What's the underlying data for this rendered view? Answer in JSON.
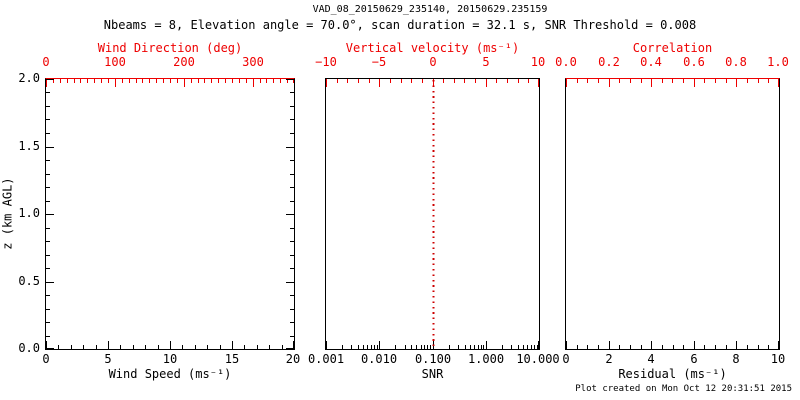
{
  "title": "VAD_08_20150629_235140, 20150629.235159",
  "subtitle": "Nbeams = 8, Elevation angle = 70.0°, scan duration = 32.1 s, SNR Threshold = 0.008",
  "footer": "Plot created on Mon Oct 12 20:31:51 2015",
  "colors": {
    "primary_axis": "#000000",
    "secondary_axis": "#ee0000",
    "reference_line": "#cc0000",
    "background": "#ffffff"
  },
  "y_axis": {
    "label": "z (km AGL)",
    "lim": [
      0.0,
      2.0
    ],
    "major_ticks": [
      0.0,
      0.5,
      1.0,
      1.5,
      2.0
    ],
    "tick_labels": [
      "0.0",
      "0.5",
      "1.0",
      "1.5",
      "2.0"
    ],
    "minor_step": 0.1
  },
  "chart_data": [
    {
      "type": "line",
      "panel": "wind-speed",
      "series": [],
      "note": "panel is empty - no profile data plotted",
      "xlabel": "Wind Speed (ms⁻¹)",
      "xscale": "linear",
      "xlim": [
        0,
        20
      ],
      "x_major_ticks": [
        0,
        5,
        10,
        15,
        20
      ],
      "x_tick_labels": [
        "0",
        "5",
        "10",
        "15",
        "20"
      ],
      "x_minor_step": 1,
      "ylim": [
        0.0,
        2.0
      ],
      "show_y_ticks": true,
      "top_axis": {
        "label": "Wind Direction (deg)",
        "lim": [
          0,
          360
        ],
        "major_ticks": [
          0,
          100,
          200,
          300
        ],
        "tick_labels": [
          "0",
          "100",
          "200",
          "300"
        ],
        "minor_step": 10,
        "axis_line_color": "#ee0000"
      }
    },
    {
      "type": "line",
      "panel": "snr",
      "series": [],
      "note": "panel is empty - no profile data plotted",
      "xlabel": "SNR",
      "xscale": "log",
      "xlim": [
        0.001,
        10.0
      ],
      "x_major_ticks": [
        0.001,
        0.01,
        0.1,
        1.0,
        10.0
      ],
      "x_tick_labels": [
        "0.001",
        "0.010",
        "0.100",
        "1.000",
        "10.000"
      ],
      "ylim": [
        0.0,
        2.0
      ],
      "show_y_ticks": false,
      "top_axis": {
        "label": "Vertical velocity (ms⁻¹)",
        "lim": [
          -10,
          10
        ],
        "major_ticks": [
          -10,
          -5,
          0,
          5,
          10
        ],
        "tick_labels": [
          "−10",
          "−5",
          "0",
          "5",
          "10"
        ],
        "minor_step": 1,
        "axis_line_color": "#000000"
      },
      "reference_line": {
        "axis": "top",
        "value": 0,
        "style": "dotted",
        "color": "#cc0000"
      }
    },
    {
      "type": "line",
      "panel": "residual",
      "series": [],
      "note": "panel is empty - no profile data plotted",
      "xlabel": "Residual (ms⁻¹)",
      "xscale": "linear",
      "xlim": [
        0,
        10
      ],
      "x_major_ticks": [
        0,
        2,
        4,
        6,
        8,
        10
      ],
      "x_tick_labels": [
        "0",
        "2",
        "4",
        "6",
        "8",
        "10"
      ],
      "x_minor_step": 0.5,
      "ylim": [
        0.0,
        2.0
      ],
      "show_y_ticks": false,
      "top_axis": {
        "label": "Correlation",
        "lim": [
          0.0,
          1.0
        ],
        "major_ticks": [
          0.0,
          0.2,
          0.4,
          0.6,
          0.8,
          1.0
        ],
        "tick_labels": [
          "0.0",
          "0.2",
          "0.4",
          "0.6",
          "0.8",
          "1.0"
        ],
        "minor_step": 0.05,
        "axis_line_color": "#ee0000"
      }
    }
  ]
}
